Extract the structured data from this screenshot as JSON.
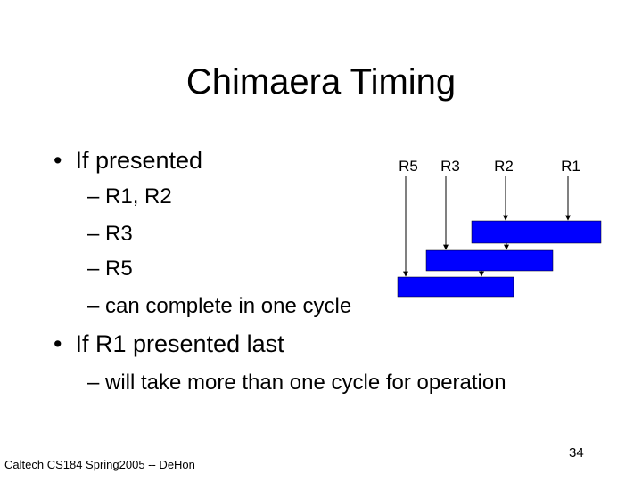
{
  "header": {
    "title": "Chimaera Timing"
  },
  "bullets": [
    {
      "text": "If presented",
      "subitems": [
        "R1, R2",
        "R3",
        "R5",
        "can complete in one cycle"
      ]
    },
    {
      "text": "If R1 presented last",
      "subitems": [
        "will take more than one cycle for operation"
      ]
    }
  ],
  "diagram": {
    "labels": [
      "R5",
      "R3",
      "R2",
      "R1"
    ]
  },
  "footer": {
    "text": "Caltech CS184 Spring2005 -- DeHon",
    "page_number": "34"
  }
}
